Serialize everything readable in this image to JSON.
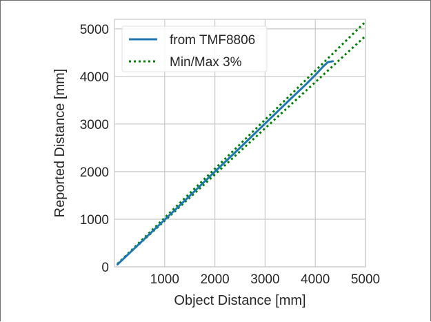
{
  "chart_data": {
    "type": "line",
    "title": "",
    "xlabel": "Object Distance [mm]",
    "ylabel": "Reported Distance [mm]",
    "xlim": [
      0,
      5000
    ],
    "ylim": [
      0,
      5200
    ],
    "xticks": [
      1000,
      2000,
      3000,
      4000,
      5000
    ],
    "yticks": [
      0,
      1000,
      2000,
      3000,
      4000,
      5000
    ],
    "grid": true,
    "legend_position": "top-left",
    "series": [
      {
        "name": "from TMF8806",
        "style": "solid",
        "color": "#1f77b4",
        "x": [
          60,
          500,
          1000,
          1500,
          2000,
          2500,
          3000,
          3500,
          3800,
          4000,
          4150,
          4250,
          4350
        ],
        "y": [
          50,
          490,
          990,
          1490,
          2000,
          2500,
          3010,
          3520,
          3820,
          4030,
          4200,
          4300,
          4320
        ]
      },
      {
        "name": "Min/Max 3%",
        "style": "dotted",
        "color": "#008000",
        "x": [
          60,
          5000
        ],
        "y": [
          62,
          5150
        ]
      },
      {
        "name": "",
        "style": "dotted",
        "color": "#008000",
        "x": [
          60,
          5000
        ],
        "y": [
          58,
          4850
        ]
      }
    ]
  }
}
